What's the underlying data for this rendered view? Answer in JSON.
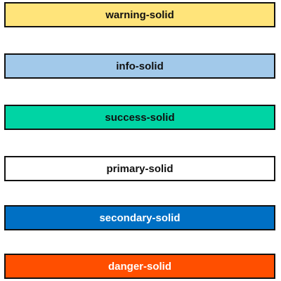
{
  "buttons": [
    {
      "label": "warning-solid",
      "background": "#FFE47A",
      "text_color": "#111111"
    },
    {
      "label": "info-solid",
      "background": "#A2C9EA",
      "text_color": "#111111"
    },
    {
      "label": "success-solid",
      "background": "#00D4A4",
      "text_color": "#111111"
    },
    {
      "label": "primary-solid",
      "background": "#FFFFFF",
      "text_color": "#111111"
    },
    {
      "label": "secondary-solid",
      "background": "#0070C4",
      "text_color": "#FFFFFF"
    },
    {
      "label": "danger-solid",
      "background": "#FF4F00",
      "text_color": "#FFFFFF"
    }
  ]
}
